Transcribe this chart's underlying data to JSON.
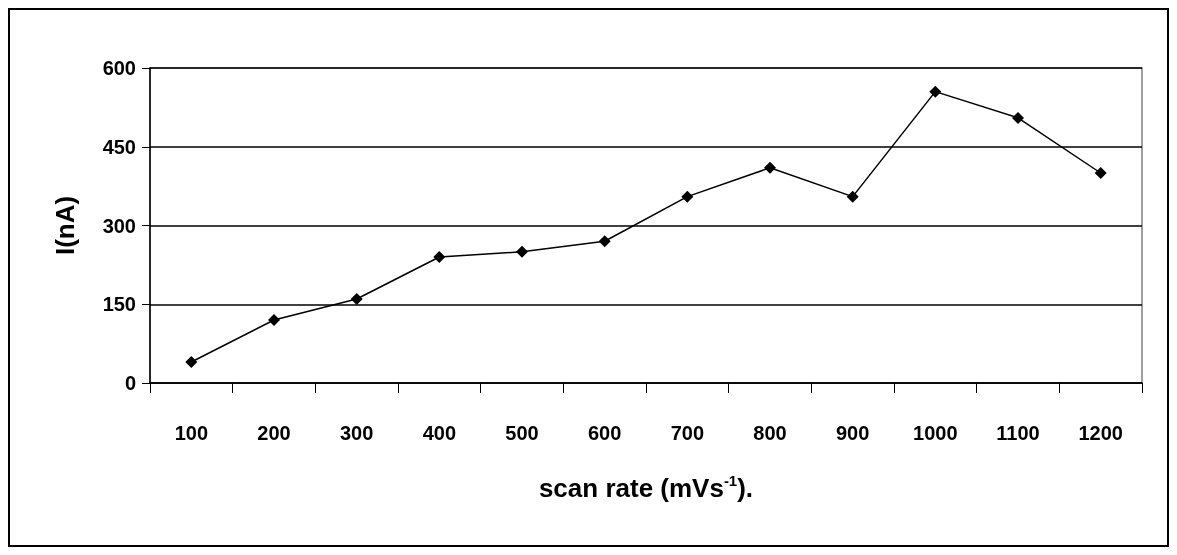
{
  "chart_data": {
    "type": "line",
    "xlabel": "scan rate (mVs$^{-1}$).",
    "ylabel": "I(nA)",
    "categories": [
      "100",
      "200",
      "300",
      "400",
      "500",
      "600",
      "700",
      "800",
      "900",
      "1000",
      "1100",
      "1200"
    ],
    "series": [
      {
        "color": "#000000",
        "values": [
          40,
          120,
          160,
          240,
          250,
          270,
          355,
          410,
          355,
          555,
          505,
          400
        ]
      }
    ],
    "ylim": [
      0,
      600
    ],
    "yticks": [
      0,
      150,
      300,
      450,
      600
    ],
    "grid": "y",
    "marker": "diamond",
    "line_style": "solid"
  }
}
